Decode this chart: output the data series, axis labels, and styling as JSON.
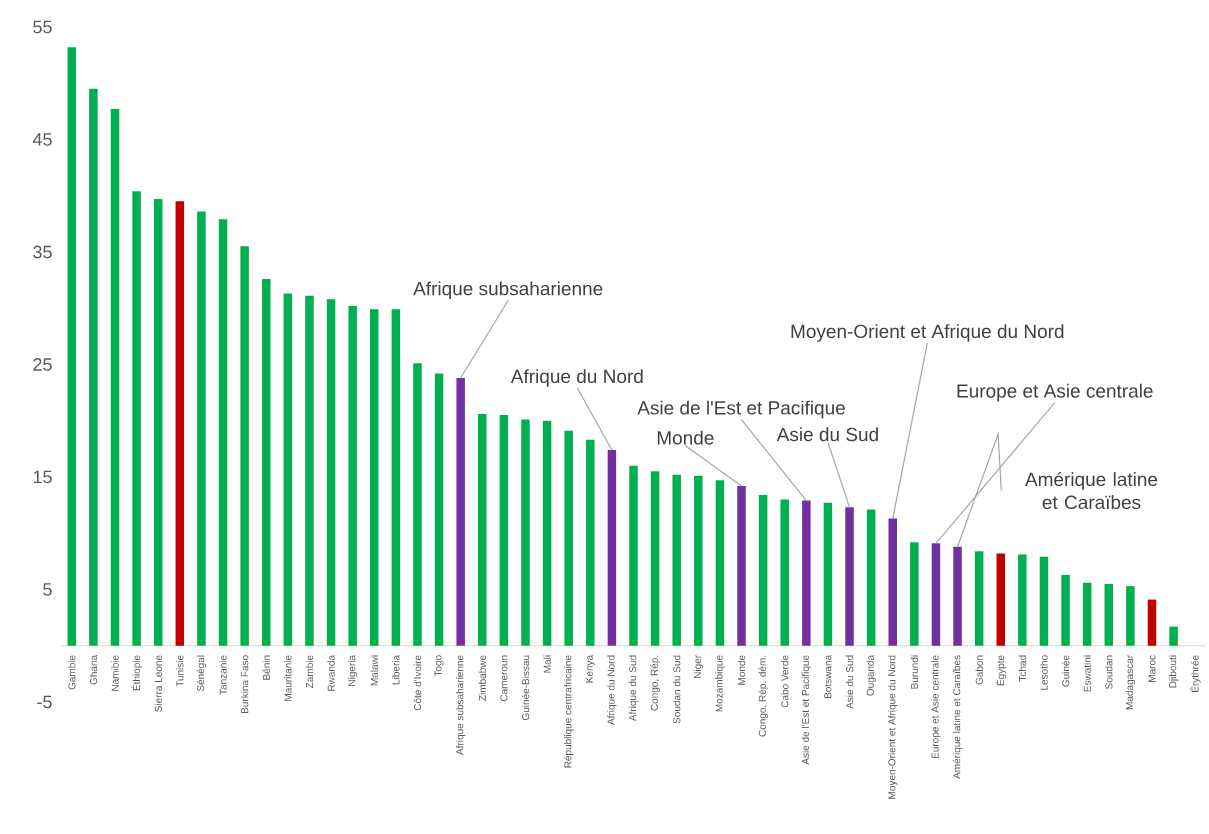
{
  "chart_data": {
    "type": "bar",
    "categories": [
      "Gambie",
      "Ghana",
      "Namibie",
      "Éthiopie",
      "Sierra Leone",
      "Tunisie",
      "Sénégal",
      "Tanzanie",
      "Burkina Faso",
      "Bénin",
      "Mauritanie",
      "Zambie",
      "Rwanda",
      "Nigeria",
      "Malawi",
      "Liberia",
      "Côte d'Ivoire",
      "Togo",
      "Afrique subsaharienne",
      "Zimbabwe",
      "Cameroun",
      "Guinée-Bissau",
      "Mali",
      "République centrafricaine",
      "Kenya",
      "Afrique du Nord",
      "Afrique du Sud",
      "Congo, Rép.",
      "Soudan du Sud",
      "Niger",
      "Mozambique",
      "Monde",
      "Congo, Rép. dém.",
      "Cabo Verde",
      "Asie de l'Est et Pacifique",
      "Botswana",
      "Asie du Sud",
      "Ouganda",
      "Moyen-Orient et Afrique du Nord",
      "Burundi",
      "Europe et Asie centrale",
      "Amérique latine et Caraïbes",
      "Gabon",
      "Égypte",
      "Tchad",
      "Lesotho",
      "Guinée",
      "Eswatini",
      "Soudan",
      "Madagascar",
      "Maroc",
      "Djibouti",
      "Érythrée"
    ],
    "values": [
      53.2,
      49.5,
      47.7,
      40.4,
      39.7,
      39.5,
      38.6,
      37.9,
      35.5,
      32.6,
      31.3,
      31.1,
      30.8,
      30.2,
      29.9,
      29.9,
      25.1,
      24.2,
      23.8,
      20.6,
      20.5,
      20.1,
      20.0,
      19.1,
      18.3,
      17.4,
      16.0,
      15.5,
      15.2,
      15.1,
      14.7,
      14.2,
      13.4,
      13.0,
      12.9,
      12.7,
      12.3,
      12.1,
      11.3,
      9.2,
      9.1,
      8.8,
      8.4,
      8.2,
      8.1,
      7.9,
      6.3,
      5.6,
      5.5,
      5.3,
      4.1,
      1.7,
      0
    ],
    "colors": [
      "#00b050",
      "#00b050",
      "#00b050",
      "#00b050",
      "#00b050",
      "#c00000",
      "#00b050",
      "#00b050",
      "#00b050",
      "#00b050",
      "#00b050",
      "#00b050",
      "#00b050",
      "#00b050",
      "#00b050",
      "#00b050",
      "#00b050",
      "#00b050",
      "#7030a0",
      "#00b050",
      "#00b050",
      "#00b050",
      "#00b050",
      "#00b050",
      "#00b050",
      "#7030a0",
      "#00b050",
      "#00b050",
      "#00b050",
      "#00b050",
      "#00b050",
      "#7030a0",
      "#00b050",
      "#00b050",
      "#7030a0",
      "#00b050",
      "#7030a0",
      "#00b050",
      "#7030a0",
      "#00b050",
      "#7030a0",
      "#7030a0",
      "#00b050",
      "#c00000",
      "#00b050",
      "#00b050",
      "#00b050",
      "#00b050",
      "#00b050",
      "#00b050",
      "#c00000",
      "#00b050",
      "#00b050"
    ],
    "ylim": [
      -5,
      55
    ],
    "yticks": [
      -5,
      5,
      15,
      25,
      35,
      45,
      55
    ],
    "annotations": [
      {
        "text": "Afrique subsaharienne",
        "x": "Afrique subsaharienne",
        "y": 23.8
      },
      {
        "text": "Afrique du Nord",
        "x": "Afrique du Nord",
        "y": 17.4
      },
      {
        "text": "Asie de l'Est et Pacifique",
        "x": "Asie de l'Est et Pacifique",
        "y": 12.9
      },
      {
        "text": "Monde",
        "x": "Monde",
        "y": 14.2
      },
      {
        "text": "Asie du Sud",
        "x": "Asie du Sud",
        "y": 12.3
      },
      {
        "text": "Moyen-Orient et Afrique du Nord",
        "x": "Moyen-Orient et Afrique du Nord",
        "y": 11.3
      },
      {
        "text": "Europe et Asie centrale",
        "x": "Europe et Asie centrale",
        "y": 9.1
      },
      {
        "text": "Amérique latine et Caraïbes",
        "x": "Amérique latine et Caraïbes",
        "y": 8.8
      }
    ]
  }
}
